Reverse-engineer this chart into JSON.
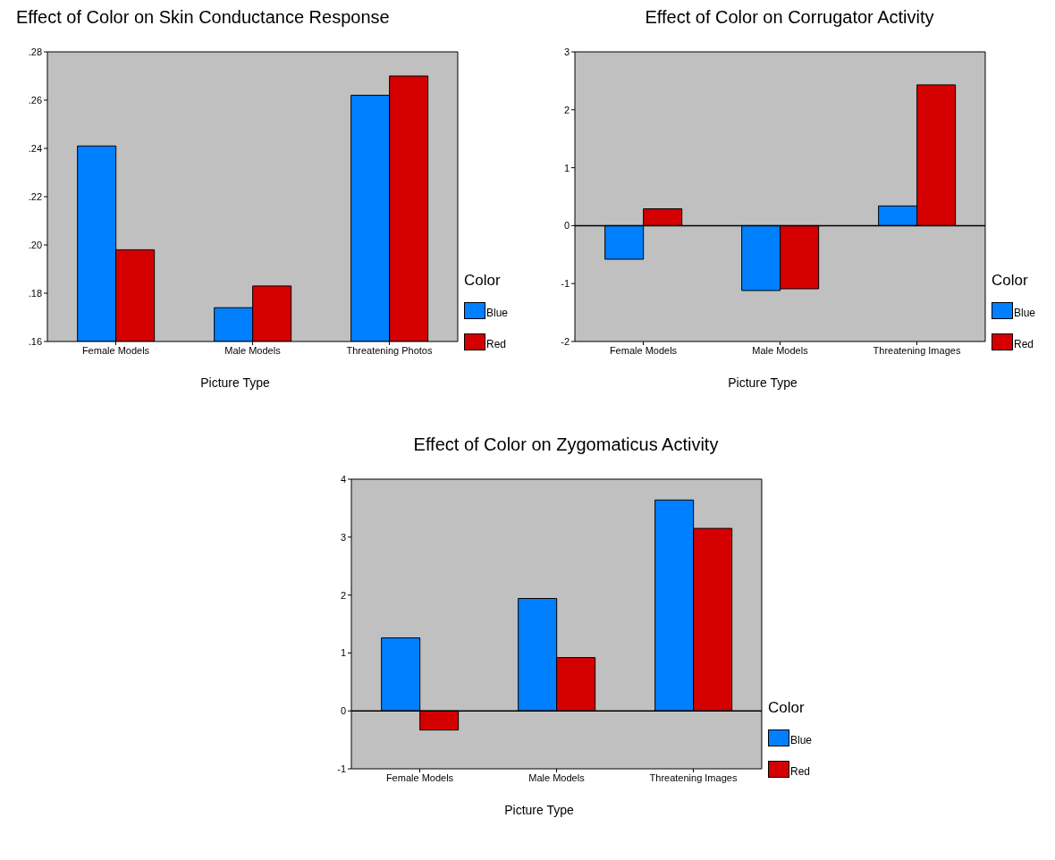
{
  "chart_data": [
    {
      "type": "bar",
      "title": "Effect of Color on Skin Conductance Response",
      "xlabel": "Picture Type",
      "legend_title": "Color",
      "legend": "right",
      "categories": [
        "Female Models",
        "Male Models",
        "Threatening Photos"
      ],
      "series": [
        {
          "name": "Blue",
          "color": "#0080ff",
          "values": [
            0.241,
            0.174,
            0.262
          ]
        },
        {
          "name": "Red",
          "color": "#d40000",
          "values": [
            0.198,
            0.183,
            0.27
          ]
        }
      ],
      "ylim": [
        0.16,
        0.28
      ],
      "yticks": [
        {
          "value": 0.16,
          "label": ".16"
        },
        {
          "value": 0.18,
          "label": ".18"
        },
        {
          "value": 0.2,
          "label": ".20"
        },
        {
          "value": 0.22,
          "label": ".22"
        },
        {
          "value": 0.24,
          "label": ".24"
        },
        {
          "value": 0.26,
          "label": ".26"
        },
        {
          "value": 0.28,
          "label": ".28"
        }
      ],
      "grid": false
    },
    {
      "type": "bar",
      "title": "Effect of Color on Corrugator Activity",
      "xlabel": "Picture Type",
      "legend_title": "Color",
      "legend": "right",
      "categories": [
        "Female Models",
        "Male Models",
        "Threatening Images"
      ],
      "series": [
        {
          "name": "Blue",
          "color": "#0080ff",
          "values": [
            -0.58,
            -1.12,
            0.34
          ]
        },
        {
          "name": "Red",
          "color": "#d40000",
          "values": [
            0.29,
            -1.09,
            2.43
          ]
        }
      ],
      "ylim": [
        -2,
        3
      ],
      "yticks": [
        -2,
        -1,
        0,
        1,
        2,
        3
      ],
      "ref_lines": [
        {
          "axis": "y",
          "value": 0
        }
      ],
      "grid": false
    },
    {
      "type": "bar",
      "title": "Effect of Color on Zygomaticus Activity",
      "xlabel": "Picture Type",
      "legend_title": "Color",
      "legend": "right",
      "categories": [
        "Female Models",
        "Male Models",
        "Threatening Images"
      ],
      "series": [
        {
          "name": "Blue",
          "color": "#0080ff",
          "values": [
            1.26,
            1.94,
            3.64
          ]
        },
        {
          "name": "Red",
          "color": "#d40000",
          "values": [
            -0.33,
            0.92,
            3.15
          ]
        }
      ],
      "ylim": [
        -1,
        4
      ],
      "yticks": [
        -1,
        0,
        1,
        2,
        3,
        4
      ],
      "ref_lines": [
        {
          "axis": "y",
          "value": 0
        }
      ],
      "grid": false
    }
  ]
}
